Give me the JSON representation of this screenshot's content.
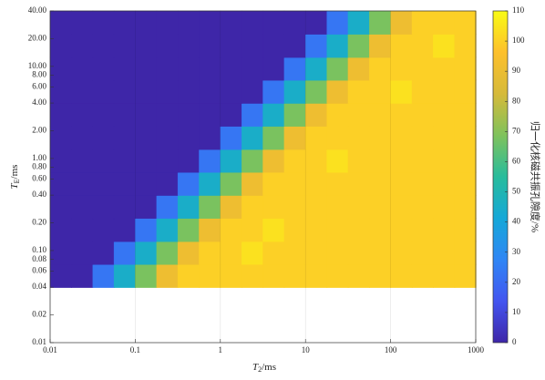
{
  "chart_data": {
    "type": "heatmap",
    "x_label": {
      "main": "T",
      "sub": "2",
      "unit": "/ms"
    },
    "y_label": {
      "main": "T",
      "sub": "E",
      "unit": "/ms"
    },
    "colorbar_label": "归一化核磁共振孔隙度/%",
    "x_log": true,
    "y_log": true,
    "grid": "x",
    "xlim": [
      0.01,
      1000
    ],
    "ylim": [
      0.01,
      40
    ],
    "xticks": [
      0.01,
      0.1,
      1,
      10,
      100,
      1000
    ],
    "yticks": [
      0.01,
      0.02,
      0.04,
      0.06,
      0.08,
      {
        "value": 0.1,
        "label": "0.10"
      },
      {
        "value": 0.2,
        "label": "0.20"
      },
      {
        "value": 0.4,
        "label": "0.40"
      },
      {
        "value": 0.6,
        "label": "0.60"
      },
      {
        "value": 0.8,
        "label": "0.80"
      },
      {
        "value": 1,
        "label": "1.00"
      },
      {
        "value": 2,
        "label": "2.00"
      },
      {
        "value": 4,
        "label": "4.00"
      },
      {
        "value": 6,
        "label": "6.00"
      },
      {
        "value": 8,
        "label": "8.00"
      },
      {
        "value": 10,
        "label": "10.00"
      },
      {
        "value": 20,
        "label": "20.00"
      },
      {
        "value": 40,
        "label": "40.00"
      }
    ],
    "clim": [
      0,
      110
    ],
    "cticks": [
      0,
      10,
      20,
      30,
      40,
      50,
      60,
      70,
      80,
      90,
      100,
      110
    ],
    "colormap": [
      "#3e26a8",
      "#4355f0",
      "#2f86f5",
      "#15a8d8",
      "#28bc9c",
      "#7fc25c",
      "#d6ba3a",
      "#fdc02c",
      "#f9fb15"
    ],
    "x_edges": [
      0.01,
      0.0178,
      0.0316,
      0.0562,
      0.1,
      0.178,
      0.316,
      0.562,
      1,
      1.78,
      3.16,
      5.62,
      10,
      17.8,
      31.6,
      56.2,
      100,
      178,
      316,
      562,
      1000
    ],
    "y_edges": [
      0.04,
      0.0711,
      0.126,
      0.225,
      0.4,
      0.711,
      1.26,
      2.25,
      4,
      7.11,
      12.6,
      22.5,
      40
    ],
    "z": [
      [
        0,
        0,
        23,
        45,
        68,
        91,
        100,
        100,
        100,
        100,
        100,
        100,
        100,
        100,
        100,
        100,
        100,
        100,
        100,
        100
      ],
      [
        0,
        0,
        0,
        23,
        45,
        68,
        91,
        100,
        100,
        104,
        100,
        100,
        100,
        100,
        100,
        100,
        100,
        100,
        100,
        100
      ],
      [
        0,
        0,
        0,
        0,
        23,
        45,
        68,
        91,
        100,
        100,
        104,
        100,
        100,
        100,
        100,
        100,
        100,
        100,
        100,
        100
      ],
      [
        0,
        0,
        0,
        0,
        0,
        23,
        45,
        68,
        91,
        100,
        100,
        100,
        100,
        100,
        100,
        100,
        100,
        100,
        100,
        100
      ],
      [
        0,
        0,
        0,
        0,
        0,
        0,
        23,
        45,
        68,
        91,
        100,
        100,
        100,
        100,
        100,
        100,
        100,
        100,
        100,
        100
      ],
      [
        0,
        0,
        0,
        0,
        0,
        0,
        0,
        23,
        45,
        68,
        91,
        100,
        100,
        104,
        100,
        100,
        100,
        100,
        100,
        100
      ],
      [
        0,
        0,
        0,
        0,
        0,
        0,
        0,
        0,
        23,
        45,
        68,
        91,
        100,
        100,
        100,
        100,
        100,
        100,
        100,
        100
      ],
      [
        0,
        0,
        0,
        0,
        0,
        0,
        0,
        0,
        0,
        23,
        45,
        68,
        91,
        100,
        100,
        100,
        100,
        100,
        100,
        100
      ],
      [
        0,
        0,
        0,
        0,
        0,
        0,
        0,
        0,
        0,
        0,
        23,
        45,
        68,
        91,
        100,
        100,
        104,
        100,
        100,
        100
      ],
      [
        0,
        0,
        0,
        0,
        0,
        0,
        0,
        0,
        0,
        0,
        0,
        23,
        45,
        68,
        91,
        100,
        100,
        100,
        100,
        100
      ],
      [
        0,
        0,
        0,
        0,
        0,
        0,
        0,
        0,
        0,
        0,
        0,
        0,
        23,
        45,
        68,
        91,
        100,
        100,
        104,
        100
      ],
      [
        0,
        0,
        0,
        0,
        0,
        0,
        0,
        0,
        0,
        0,
        0,
        0,
        0,
        23,
        45,
        68,
        91,
        100,
        100,
        100
      ]
    ]
  }
}
